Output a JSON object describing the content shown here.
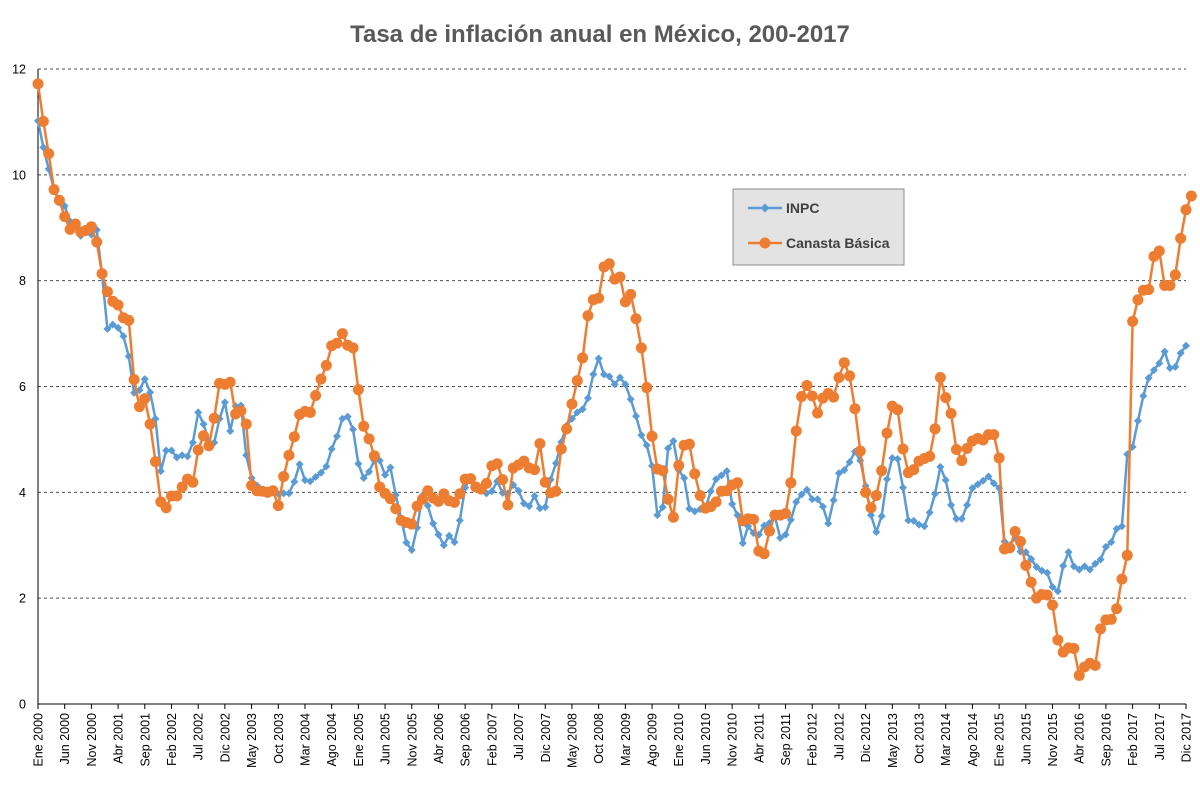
{
  "chart_data": {
    "type": "line",
    "title": "Tasa de inflación anual en México, 200-2017",
    "xlabel": "",
    "ylabel": "",
    "ylim": [
      0,
      12
    ],
    "yticks": [
      "0",
      "2",
      "4",
      "6",
      "8",
      "10",
      "12"
    ],
    "grid": "horizontal dashed",
    "legend_position": "upper-center",
    "x_start": "Ene 2000",
    "x_end": "Dic 2017",
    "x_tick_labels": [
      "Ene 2000",
      "Jun 2000",
      "Nov 2000",
      "Abr 2001",
      "Sep 2001",
      "Feb 2002",
      "Jul 2002",
      "Dic 2002",
      "May 2003",
      "Oct 2003",
      "Mar 2004",
      "Ago 2004",
      "Ene 2005",
      "Jun 2005",
      "Nov 2005",
      "Abr 2006",
      "Sep 2006",
      "Feb 2007",
      "Jul 2007",
      "Dic 2007",
      "May 2008",
      "Oct 2008",
      "Mar 2009",
      "Ago 2009",
      "Ene 2010",
      "Jun 2010",
      "Nov 2010",
      "Abr 2011",
      "Sep 2011",
      "Feb 2012",
      "Jul 2012",
      "Dic 2012",
      "May 2013",
      "Oct 2013",
      "Mar 2014",
      "Ago 2014",
      "Ene 2015",
      "Jun 2015",
      "Nov 2015",
      "Abr 2016",
      "Sep 2016",
      "Feb 2017",
      "Jul 2017",
      "Dic 2017"
    ],
    "series": [
      {
        "name": "INPC",
        "color": "#5B9BD5",
        "marker": "diamond",
        "values": [
          11.02,
          10.52,
          10.11,
          9.73,
          9.48,
          9.41,
          9.12,
          9.1,
          8.85,
          8.91,
          8.87,
          8.96,
          8.11,
          7.09,
          7.17,
          7.11,
          6.95,
          6.57,
          5.88,
          5.93,
          6.14,
          5.89,
          5.39,
          4.4,
          4.79,
          4.79,
          4.66,
          4.7,
          4.68,
          4.94,
          5.51,
          5.29,
          4.95,
          4.94,
          5.39,
          5.7,
          5.16,
          5.63,
          5.64,
          4.7,
          4.27,
          4.13,
          4.04,
          4.04,
          4.02,
          3.97,
          3.98,
          3.98,
          4.2,
          4.53,
          4.23,
          4.21,
          4.29,
          4.37,
          4.49,
          4.82,
          5.06,
          5.39,
          5.43,
          5.19,
          4.54,
          4.27,
          4.39,
          4.6,
          4.6,
          4.33,
          4.47,
          3.95,
          3.51,
          3.05,
          2.91,
          3.33,
          3.94,
          3.75,
          3.41,
          3.2,
          3.0,
          3.18,
          3.06,
          3.47,
          4.09,
          4.29,
          4.09,
          4.05,
          3.98,
          4.02,
          4.21,
          3.99,
          3.98,
          4.14,
          4.03,
          3.79,
          3.74,
          3.93,
          3.7,
          3.72,
          4.24,
          4.55,
          4.95,
          5.26,
          5.39,
          5.51,
          5.57,
          5.78,
          6.23,
          6.53,
          6.23,
          6.19,
          6.04,
          6.17,
          6.04,
          5.76,
          5.44,
          5.08,
          4.89,
          4.5,
          3.57,
          3.72,
          4.83,
          4.97,
          4.42,
          4.27,
          3.69,
          3.64,
          3.68,
          3.7,
          4.02,
          4.25,
          4.32,
          4.4,
          3.78,
          3.57,
          3.04,
          3.36,
          3.23,
          3.2,
          3.37,
          3.42,
          3.55,
          3.14,
          3.2,
          3.48,
          3.82,
          3.96,
          4.05,
          3.87,
          3.87,
          3.73,
          3.41,
          3.85,
          4.36,
          4.42,
          4.57,
          4.77,
          4.6,
          4.12,
          3.57,
          3.25,
          3.55,
          4.25,
          4.65,
          4.63,
          4.09,
          3.47,
          3.46,
          3.39,
          3.36,
          3.62,
          3.97,
          4.48,
          4.23,
          3.76,
          3.5,
          3.5,
          3.76,
          4.08,
          4.15,
          4.22,
          4.3,
          4.17,
          4.08,
          3.07,
          3.0,
          3.14,
          2.88,
          2.87,
          2.74,
          2.59,
          2.52,
          2.48,
          2.21,
          2.13,
          2.61,
          2.87,
          2.6,
          2.54,
          2.6,
          2.54,
          2.65,
          2.73,
          2.97,
          3.06,
          3.31,
          3.36,
          4.72,
          4.86,
          5.35,
          5.82,
          6.16,
          6.31,
          6.44,
          6.66,
          6.35,
          6.37,
          6.63,
          6.77
        ]
      },
      {
        "name": "Canasta Básica",
        "color": "#ED7D31",
        "marker": "circle",
        "values": [
          11.72,
          11.01,
          10.4,
          9.72,
          9.52,
          9.21,
          8.97,
          9.07,
          8.92,
          8.95,
          9.02,
          8.73,
          8.13,
          7.79,
          7.61,
          7.54,
          7.3,
          7.25,
          6.13,
          5.62,
          5.77,
          5.29,
          4.58,
          3.82,
          3.71,
          3.93,
          3.93,
          4.1,
          4.25,
          4.19,
          4.8,
          5.07,
          4.88,
          5.4,
          6.06,
          6.04,
          6.08,
          5.48,
          5.54,
          5.29,
          4.13,
          4.03,
          4.02,
          4.0,
          4.03,
          3.75,
          4.3,
          4.7,
          5.05,
          5.47,
          5.53,
          5.51,
          5.83,
          6.14,
          6.4,
          6.77,
          6.82,
          7.0,
          6.78,
          6.73,
          5.94,
          5.25,
          5.01,
          4.69,
          4.1,
          3.98,
          3.88,
          3.69,
          3.47,
          3.43,
          3.4,
          3.74,
          3.87,
          4.03,
          3.89,
          3.83,
          3.97,
          3.84,
          3.81,
          3.97,
          4.25,
          4.26,
          4.1,
          4.06,
          4.17,
          4.5,
          4.54,
          4.24,
          3.76,
          4.46,
          4.52,
          4.59,
          4.46,
          4.43,
          4.92,
          4.19,
          3.99,
          4.02,
          4.82,
          5.2,
          5.67,
          6.11,
          6.54,
          7.34,
          7.64,
          7.67,
          8.26,
          8.32,
          8.03,
          8.07,
          7.6,
          7.74,
          7.28,
          6.73,
          5.98,
          5.06,
          4.44,
          4.41,
          3.87,
          3.53,
          4.51,
          4.89,
          4.91,
          4.35,
          3.94,
          3.7,
          3.73,
          3.82,
          4.02,
          4.03,
          4.14,
          4.18,
          3.46,
          3.5,
          3.49,
          2.89,
          2.84,
          3.27,
          3.57,
          3.57,
          3.6,
          4.18,
          5.16,
          5.81,
          6.02,
          5.82,
          5.5,
          5.78,
          5.87,
          5.8,
          6.17,
          6.45,
          6.2,
          5.58,
          4.78,
          4.0,
          3.71,
          3.94,
          4.41,
          5.12,
          5.63,
          5.56,
          4.82,
          4.37,
          4.43,
          4.59,
          4.64,
          4.68,
          5.2,
          6.17,
          5.79,
          5.49,
          4.81,
          4.6,
          4.83,
          4.97,
          5.02,
          4.99,
          5.09,
          5.09,
          4.65,
          2.93,
          2.95,
          3.26,
          3.07,
          2.62,
          2.3,
          2.0,
          2.07,
          2.06,
          1.87,
          1.21,
          0.98,
          1.06,
          1.05,
          0.54,
          0.7,
          0.77,
          0.73,
          1.42,
          1.59,
          1.6,
          1.8,
          2.36,
          2.81,
          7.23,
          7.64,
          7.82,
          7.83,
          8.46,
          8.56,
          7.91,
          7.91,
          8.11,
          8.8,
          9.34,
          9.6
        ]
      }
    ]
  }
}
